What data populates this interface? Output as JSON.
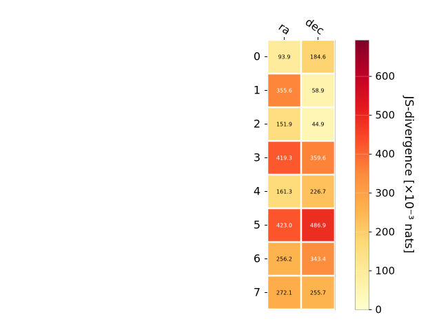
{
  "chart_data": {
    "type": "heatmap",
    "columns": [
      "ra",
      "dec"
    ],
    "rows": [
      "0",
      "1",
      "2",
      "3",
      "4",
      "5",
      "6",
      "7"
    ],
    "values": [
      [
        93.9,
        184.6
      ],
      [
        355.6,
        58.9
      ],
      [
        151.9,
        44.9
      ],
      [
        419.3,
        359.6
      ],
      [
        161.3,
        226.7
      ],
      [
        423.0,
        486.9
      ],
      [
        256.2,
        343.4
      ],
      [
        272.1,
        255.7
      ]
    ],
    "value_labels": [
      [
        "93.9",
        "184.6"
      ],
      [
        "355.6",
        "58.9"
      ],
      [
        "151.9",
        "44.9"
      ],
      [
        "419.3",
        "359.6"
      ],
      [
        "161.3",
        "226.7"
      ],
      [
        "423.0",
        "486.9"
      ],
      [
        "256.2",
        "343.4"
      ],
      [
        "272.1",
        "255.7"
      ]
    ],
    "colorbar": {
      "label": "JS-divergence [×10⁻³ nats]",
      "range": [
        0,
        693
      ],
      "ticks": [
        "0",
        "100",
        "200",
        "300",
        "400",
        "500",
        "600"
      ],
      "tick_values": [
        0,
        100,
        200,
        300,
        400,
        500,
        600
      ],
      "colormap": "YlOrRd"
    },
    "grid": false
  }
}
